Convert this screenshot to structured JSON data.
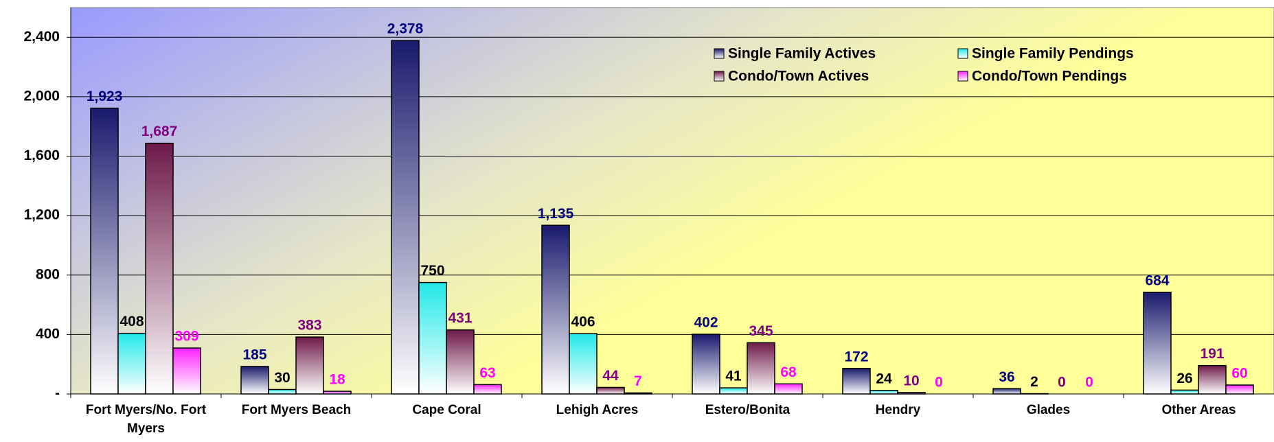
{
  "chart_data": {
    "type": "bar",
    "categories": [
      "Fort Myers/No. Fort Myers",
      "Fort Myers Beach",
      "Cape Coral",
      "Lehigh Acres",
      "Estero/Bonita",
      "Hendry",
      "Glades",
      "Other Areas"
    ],
    "series": [
      {
        "name": "Single Family Actives",
        "color": "#1a1a6e",
        "label_color": "#000080",
        "values": [
          1923,
          185,
          2378,
          1135,
          402,
          172,
          36,
          684
        ],
        "value_labels": [
          "1,923",
          "185",
          "2,378",
          "1,135",
          "402",
          "172",
          "36",
          "684"
        ]
      },
      {
        "name": "Single Family Pendings",
        "color": "#22e8e8",
        "label_color": "#000000",
        "values": [
          408,
          30,
          750,
          406,
          41,
          24,
          2,
          26
        ]
      },
      {
        "name": "Condo/Town Actives",
        "color": "#6e1a4a",
        "label_color": "#800080",
        "values": [
          1687,
          383,
          431,
          44,
          345,
          10,
          0,
          191
        ],
        "value_labels": [
          "1,687",
          "383",
          "431",
          "44",
          "345",
          "10",
          "0",
          "191"
        ]
      },
      {
        "name": "Condo/Town Pendings",
        "color": "#ff22ff",
        "label_color": "#ff00ff",
        "values": [
          309,
          18,
          63,
          7,
          68,
          0,
          0,
          60
        ]
      }
    ],
    "ylim": [
      0,
      2600
    ],
    "yticks": [
      {
        "value": 0,
        "label": "-"
      },
      {
        "value": 400,
        "label": "400"
      },
      {
        "value": 800,
        "label": "800"
      },
      {
        "value": 1200,
        "label": "1,200"
      },
      {
        "value": 1600,
        "label": "1,600"
      },
      {
        "value": 2000,
        "label": "2,000"
      },
      {
        "value": 2400,
        "label": "2,400"
      }
    ],
    "grid": true,
    "legend": "upper right"
  }
}
